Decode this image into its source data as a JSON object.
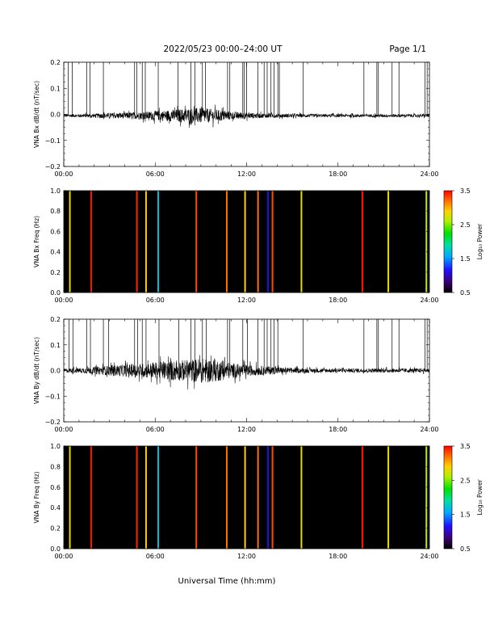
{
  "header": {
    "title": "2022/05/23  00:00–24:00 UT",
    "page": "Page 1/1"
  },
  "footer": {
    "xlabel": "Universal Time (hh:mm)"
  },
  "time_ticks": [
    "00:00",
    "06:00",
    "12:00",
    "18:00",
    "24:00"
  ],
  "colorbar": {
    "label": "Log₁₀ Power",
    "ticks": [
      "0.5",
      "1.5",
      "2.5",
      "3.5"
    ],
    "range": [
      0.5,
      3.5
    ]
  },
  "chart_data": [
    {
      "type": "line",
      "id": "bx-dbdt",
      "ylabel": "VNA Bx dB/dt (nT/sec)",
      "xlim": [
        0,
        24
      ],
      "ylim": [
        -0.2,
        0.2
      ],
      "yticks": [
        "0.2",
        "0.1",
        "0.0",
        "−0.1",
        "−0.2"
      ],
      "ytick_values": [
        0.2,
        0.1,
        0.0,
        -0.1,
        -0.2
      ],
      "baseline": -0.005,
      "noise_envelope": {
        "hours": [
          0,
          1,
          2,
          3,
          4,
          5,
          6,
          7,
          8,
          9,
          10,
          11,
          12,
          13,
          14,
          15,
          16,
          17,
          18,
          19,
          20,
          21,
          22,
          23,
          24
        ],
        "amplitude": [
          0.006,
          0.006,
          0.008,
          0.01,
          0.012,
          0.014,
          0.018,
          0.022,
          0.028,
          0.03,
          0.024,
          0.016,
          0.012,
          0.009,
          0.008,
          0.007,
          0.007,
          0.006,
          0.006,
          0.006,
          0.006,
          0.006,
          0.006,
          0.006,
          0.006
        ]
      },
      "spikes_hours": [
        0.3,
        0.55,
        1.5,
        1.72,
        2.6,
        4.65,
        4.8,
        5.15,
        5.35,
        6.2,
        7.5,
        8.35,
        8.6,
        9.1,
        9.3,
        10.75,
        10.9,
        11.75,
        11.85,
        12.0,
        12.75,
        13.15,
        13.35,
        13.6,
        13.8,
        14.05,
        14.15,
        15.7,
        19.7,
        20.55,
        20.65,
        21.55,
        22.0,
        23.7,
        23.85
      ]
    },
    {
      "type": "heatmap",
      "id": "bx-spectrogram",
      "ylabel": "VNA Bx Freq (Hz)",
      "xlim": [
        0,
        24
      ],
      "ylim": [
        0,
        1.0
      ],
      "yticks": [
        "1.0",
        "0.8",
        "0.6",
        "0.4",
        "0.2",
        "0.0"
      ],
      "ytick_values": [
        1.0,
        0.8,
        0.6,
        0.4,
        0.2,
        0.0
      ],
      "background_log_power": 0.5,
      "stripes": [
        {
          "hour": 0.4,
          "log_power": 2.8
        },
        {
          "hour": 1.8,
          "log_power": 3.45
        },
        {
          "hour": 4.8,
          "log_power": 3.4
        },
        {
          "hour": 5.4,
          "log_power": 2.9
        },
        {
          "hour": 6.2,
          "log_power": 1.7
        },
        {
          "hour": 8.7,
          "log_power": 3.3
        },
        {
          "hour": 10.7,
          "log_power": 3.2
        },
        {
          "hour": 11.9,
          "log_power": 2.9
        },
        {
          "hour": 12.75,
          "log_power": 3.2
        },
        {
          "hour": 13.4,
          "log_power": 1.1
        },
        {
          "hour": 13.7,
          "log_power": 3.3
        },
        {
          "hour": 15.6,
          "log_power": 2.8
        },
        {
          "hour": 19.6,
          "log_power": 3.45
        },
        {
          "hour": 21.3,
          "log_power": 2.8
        },
        {
          "hour": 23.8,
          "log_power": 2.6
        }
      ]
    },
    {
      "type": "line",
      "id": "by-dbdt",
      "ylabel": "VNA By dB/dt (nT/sec)",
      "xlim": [
        0,
        24
      ],
      "ylim": [
        -0.2,
        0.2
      ],
      "yticks": [
        "0.2",
        "0.1",
        "0.0",
        "−0.1",
        "−0.2"
      ],
      "ytick_values": [
        0.2,
        0.1,
        0.0,
        -0.1,
        -0.2
      ],
      "baseline": 0.0,
      "noise_envelope": {
        "hours": [
          0,
          1,
          2,
          3,
          4,
          5,
          6,
          7,
          8,
          9,
          10,
          11,
          12,
          13,
          14,
          15,
          16,
          17,
          18,
          19,
          20,
          21,
          22,
          23,
          24
        ],
        "amplitude": [
          0.008,
          0.01,
          0.014,
          0.02,
          0.024,
          0.026,
          0.032,
          0.038,
          0.042,
          0.048,
          0.044,
          0.03,
          0.022,
          0.018,
          0.014,
          0.01,
          0.009,
          0.008,
          0.008,
          0.008,
          0.008,
          0.008,
          0.008,
          0.008,
          0.008
        ]
      },
      "spikes_hours": [
        0.35,
        0.6,
        1.5,
        1.75,
        2.6,
        2.95,
        4.65,
        4.85,
        5.15,
        5.4,
        6.25,
        7.55,
        8.35,
        8.6,
        9.1,
        9.35,
        10.75,
        10.9,
        11.75,
        12.05,
        12.75,
        13.15,
        13.35,
        13.6,
        13.8,
        14.05,
        15.7,
        19.7,
        20.55,
        20.65,
        21.55,
        22.0,
        23.7,
        23.85
      ]
    },
    {
      "type": "heatmap",
      "id": "by-spectrogram",
      "ylabel": "VNA By Freq (Hz)",
      "xlim": [
        0,
        24
      ],
      "ylim": [
        0,
        1.0
      ],
      "yticks": [
        "1.0",
        "0.8",
        "0.6",
        "0.4",
        "0.2",
        "0.0"
      ],
      "ytick_values": [
        1.0,
        0.8,
        0.6,
        0.4,
        0.2,
        0.0
      ],
      "background_log_power": 0.5,
      "stripes": [
        {
          "hour": 0.4,
          "log_power": 2.8
        },
        {
          "hour": 1.8,
          "log_power": 3.45
        },
        {
          "hour": 4.8,
          "log_power": 3.4
        },
        {
          "hour": 5.4,
          "log_power": 2.9
        },
        {
          "hour": 6.2,
          "log_power": 1.7
        },
        {
          "hour": 8.7,
          "log_power": 3.3
        },
        {
          "hour": 10.7,
          "log_power": 3.2
        },
        {
          "hour": 11.9,
          "log_power": 2.9
        },
        {
          "hour": 12.75,
          "log_power": 3.2
        },
        {
          "hour": 13.4,
          "log_power": 1.1
        },
        {
          "hour": 13.7,
          "log_power": 3.3
        },
        {
          "hour": 15.6,
          "log_power": 2.8
        },
        {
          "hour": 19.6,
          "log_power": 3.45
        },
        {
          "hour": 21.3,
          "log_power": 2.8
        },
        {
          "hour": 23.8,
          "log_power": 2.6
        }
      ]
    }
  ]
}
